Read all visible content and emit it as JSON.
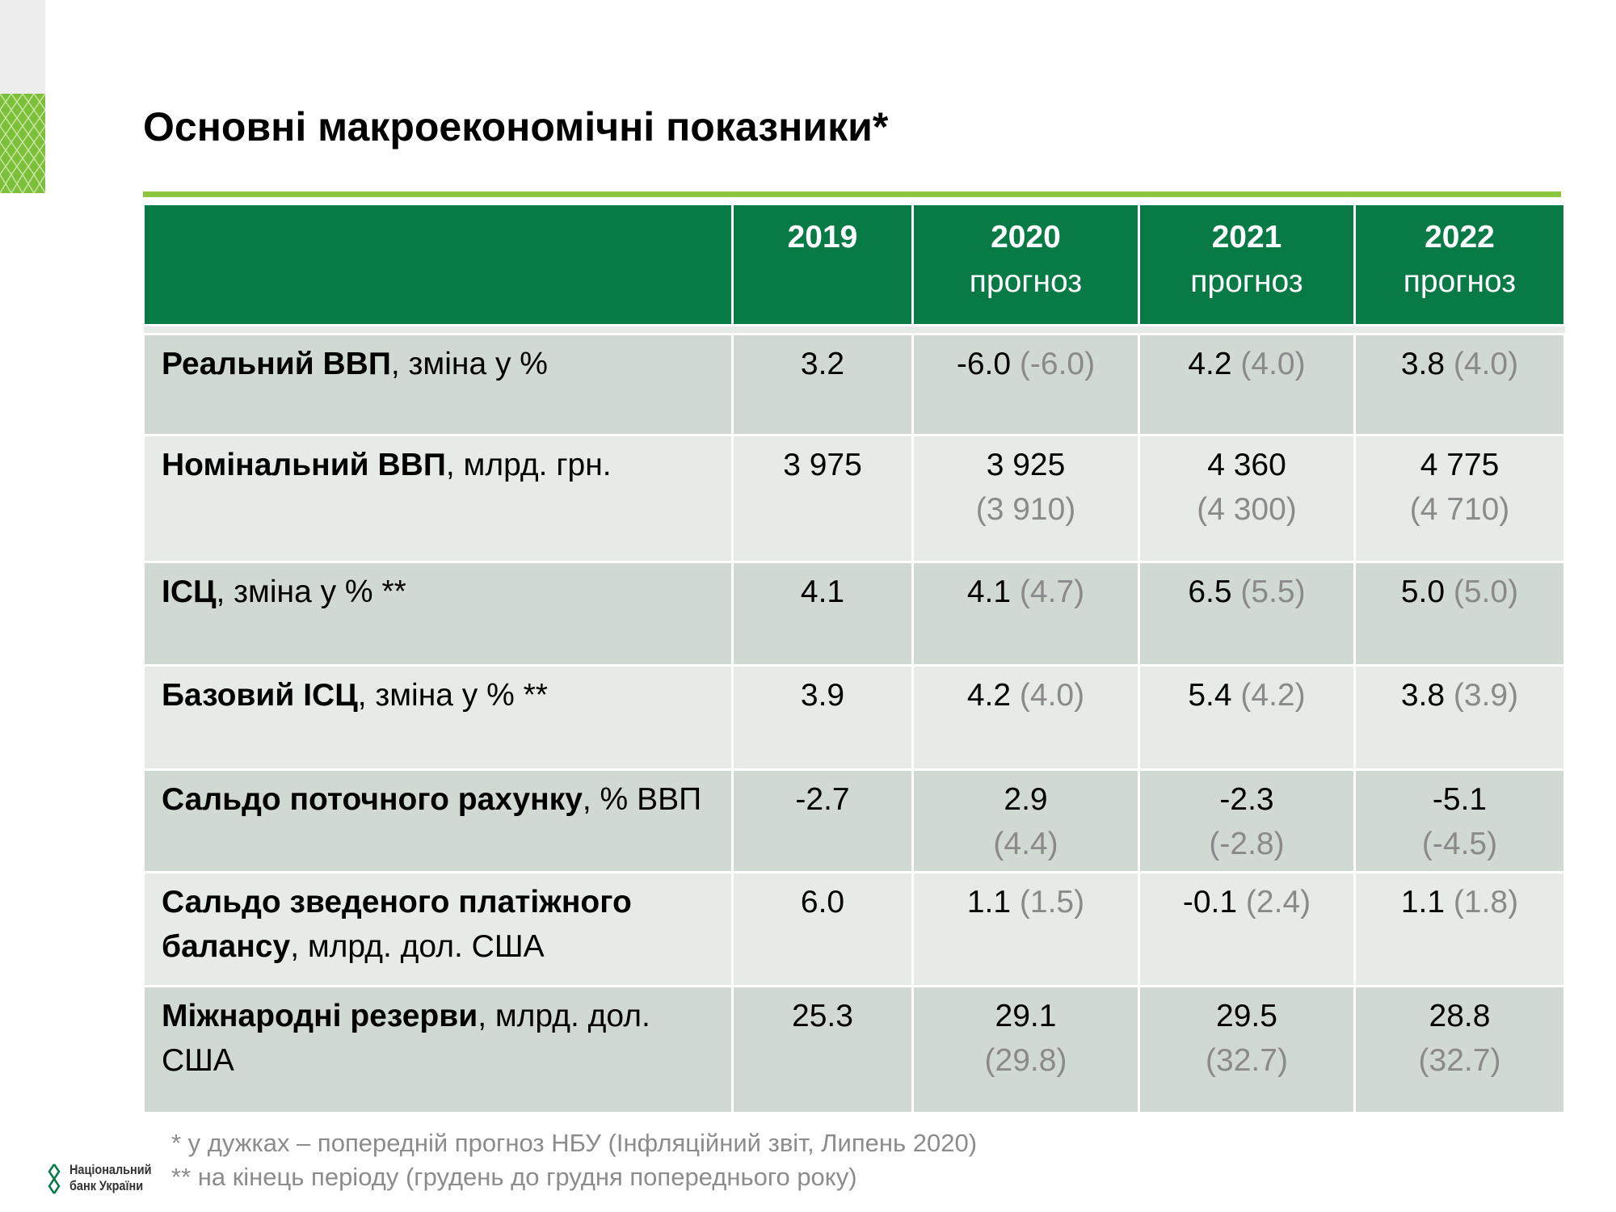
{
  "header": {
    "title": "Основні макроекономічні показники*"
  },
  "table": {
    "columns": [
      {
        "year": "2019"
      },
      {
        "year": "2020",
        "note": "прогноз"
      },
      {
        "year": "2021",
        "note": "прогноз"
      },
      {
        "year": "2022",
        "note": "прогноз"
      }
    ],
    "rows": [
      {
        "label_bold": "Реальний ВВП",
        "label_rest": ", зміна у %",
        "cells": [
          {
            "value": "3.2"
          },
          {
            "value": "-6.0",
            "prev": "(-6.0)"
          },
          {
            "value": "4.2",
            "prev": "(4.0)"
          },
          {
            "value": "3.8",
            "prev": "(4.0)"
          }
        ]
      },
      {
        "label_bold": "Номінальний ВВП",
        "label_rest": ", млрд. грн.",
        "cells": [
          {
            "value": "3 975"
          },
          {
            "value": "3 925",
            "prev": "(3 910)"
          },
          {
            "value": "4 360",
            "prev": "(4 300)"
          },
          {
            "value": "4 775",
            "prev": "(4 710)"
          }
        ]
      },
      {
        "label_bold": "ІСЦ",
        "label_rest": ", зміна у % **",
        "cells": [
          {
            "value": "4.1"
          },
          {
            "value": "4.1",
            "prev": "(4.7)"
          },
          {
            "value": "6.5",
            "prev": "(5.5)"
          },
          {
            "value": "5.0",
            "prev": "(5.0)"
          }
        ]
      },
      {
        "label_bold": "Базовий ІСЦ",
        "label_rest": ", зміна у % **",
        "cells": [
          {
            "value": "3.9"
          },
          {
            "value": "4.2",
            "prev": "(4.0)"
          },
          {
            "value": "5.4",
            "prev": "(4.2)"
          },
          {
            "value": "3.8",
            "prev": "(3.9)"
          }
        ]
      },
      {
        "label_bold": "Сальдо поточного рахунку",
        "label_rest": ", % ВВП",
        "cells": [
          {
            "value": "-2.7"
          },
          {
            "value": "2.9",
            "prev": "(4.4)"
          },
          {
            "value": "-2.3",
            "prev": "(-2.8)"
          },
          {
            "value": "-5.1",
            "prev": "(-4.5)"
          }
        ]
      },
      {
        "label_bold": "Сальдо зведеного платіжного балансу",
        "label_rest": ", млрд. дол. США",
        "cells": [
          {
            "value": "6.0"
          },
          {
            "value": "1.1",
            "prev": "(1.5)"
          },
          {
            "value": "-0.1",
            "prev": "(2.4)"
          },
          {
            "value": "1.1",
            "prev": "(1.8)"
          }
        ]
      },
      {
        "label_bold": "Міжнародні резерви",
        "label_rest": ", млрд. дол. США",
        "cells": [
          {
            "value": "25.3"
          },
          {
            "value": "29.1",
            "prev": "(29.8)"
          },
          {
            "value": "29.5",
            "prev": "(32.7)"
          },
          {
            "value": "28.8",
            "prev": "(32.7)"
          }
        ]
      }
    ]
  },
  "footnotes": [
    "* у дужках – попередній прогноз НБУ (Інфляційний звіт, Липень 2020)",
    "** на кінець періоду (грудень до грудня попереднього року)"
  ],
  "logo": {
    "line1": "Національний",
    "line2": "банк України"
  }
}
